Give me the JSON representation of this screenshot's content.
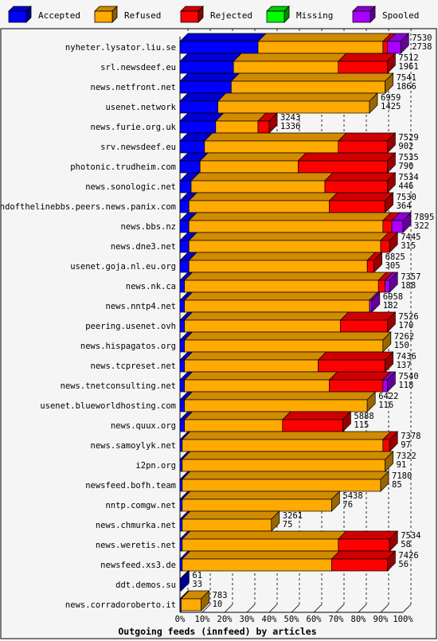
{
  "chart_data": {
    "type": "bar",
    "orientation": "horizontal",
    "stacked": true,
    "style": "3d",
    "title": "Outgoing feeds (innfeed) by articles",
    "x_ticks": [
      "0%",
      "10%",
      "20%",
      "30%",
      "40%",
      "50%",
      "60%",
      "70%",
      "80%",
      "90%",
      "100%"
    ],
    "xlim": [
      0,
      100
    ],
    "grid": true,
    "legend_position": "top",
    "legend": [
      {
        "key": "accepted",
        "label": "Accepted",
        "color": "#0000ff"
      },
      {
        "key": "refused",
        "label": "Refused",
        "color": "#ffaa00"
      },
      {
        "key": "rejected",
        "label": "Rejected",
        "color": "#ff0000"
      },
      {
        "key": "missing",
        "label": "Missing",
        "color": "#00ff00"
      },
      {
        "key": "spooled",
        "label": "Spooled",
        "color": "#aa00ff"
      }
    ],
    "rows": [
      {
        "name": "nyheter.lysator.liu.se",
        "total": "7530",
        "accepted_count": "2738",
        "pct": [
          35,
          56,
          2,
          0,
          6
        ]
      },
      {
        "name": "srl.newsdeef.eu",
        "total": "7512",
        "accepted_count": "1961",
        "pct": [
          24,
          47,
          22,
          0,
          0
        ]
      },
      {
        "name": "news.netfront.net",
        "total": "7541",
        "accepted_count": "1866",
        "pct": [
          23,
          69,
          0,
          0,
          0
        ]
      },
      {
        "name": "usenet.network",
        "total": "6959",
        "accepted_count": "1425",
        "pct": [
          17,
          68,
          0,
          0,
          0
        ]
      },
      {
        "name": "news.furie.org.uk",
        "total": "3243",
        "accepted_count": "1336",
        "pct": [
          16,
          19,
          5,
          0,
          0
        ]
      },
      {
        "name": "srv.newsdeef.eu",
        "total": "7529",
        "accepted_count": "902",
        "pct": [
          11,
          60,
          22,
          0,
          0
        ]
      },
      {
        "name": "photonic.trudheim.com",
        "total": "7535",
        "accepted_count": "790",
        "pct": [
          9,
          44,
          40,
          0,
          0
        ]
      },
      {
        "name": "news.sonologic.net",
        "total": "7534",
        "accepted_count": "446",
        "pct": [
          5,
          60,
          28,
          0,
          0
        ]
      },
      {
        "name": "endofthelinebbs.peers.news.panix.com",
        "total": "7530",
        "accepted_count": "364",
        "pct": [
          4,
          63,
          25,
          0,
          0
        ]
      },
      {
        "name": "news.bbs.nz",
        "total": "7895",
        "accepted_count": "322",
        "pct": [
          4,
          87,
          4,
          0,
          5
        ]
      },
      {
        "name": "news.dne3.net",
        "total": "7445",
        "accepted_count": "315",
        "pct": [
          4,
          86,
          4,
          0,
          0
        ]
      },
      {
        "name": "usenet.goja.nl.eu.org",
        "total": "6825",
        "accepted_count": "305",
        "pct": [
          4,
          80,
          3,
          0,
          0
        ]
      },
      {
        "name": "news.nk.ca",
        "total": "7357",
        "accepted_count": "188",
        "pct": [
          2,
          87,
          3,
          0,
          2
        ]
      },
      {
        "name": "news.nntp4.net",
        "total": "6958",
        "accepted_count": "182",
        "pct": [
          2,
          83,
          0,
          0,
          1
        ]
      },
      {
        "name": "peering.usenet.ovh",
        "total": "7526",
        "accepted_count": "170",
        "pct": [
          2,
          70,
          21,
          0,
          0
        ]
      },
      {
        "name": "news.hispagatos.org",
        "total": "7262",
        "accepted_count": "150",
        "pct": [
          2,
          89,
          0,
          0,
          0
        ]
      },
      {
        "name": "news.tcpreset.net",
        "total": "7436",
        "accepted_count": "137",
        "pct": [
          2,
          60,
          30,
          0,
          0
        ]
      },
      {
        "name": "news.tnetconsulting.net",
        "total": "7540",
        "accepted_count": "118",
        "pct": [
          2,
          65,
          24,
          0,
          2
        ]
      },
      {
        "name": "usenet.blueworldhosting.com",
        "total": "6422",
        "accepted_count": "116",
        "pct": [
          2,
          82,
          0,
          0,
          0
        ]
      },
      {
        "name": "news.quux.org",
        "total": "5888",
        "accepted_count": "115",
        "pct": [
          2,
          44,
          27,
          0,
          0
        ]
      },
      {
        "name": "news.samoylyk.net",
        "total": "7378",
        "accepted_count": "97",
        "pct": [
          1,
          90,
          3,
          0,
          0
        ]
      },
      {
        "name": "i2pn.org",
        "total": "7322",
        "accepted_count": "91",
        "pct": [
          1,
          91,
          0,
          0,
          0
        ]
      },
      {
        "name": "newsfeed.bofh.team",
        "total": "7180",
        "accepted_count": "85",
        "pct": [
          1,
          89,
          0,
          0,
          0
        ]
      },
      {
        "name": "nntp.comgw.net",
        "total": "5438",
        "accepted_count": "76",
        "pct": [
          1,
          67,
          0,
          0,
          0
        ]
      },
      {
        "name": "news.chmurka.net",
        "total": "3261",
        "accepted_count": "75",
        "pct": [
          1,
          40,
          0,
          0,
          0
        ]
      },
      {
        "name": "news.weretis.net",
        "total": "7534",
        "accepted_count": "58",
        "pct": [
          1,
          70,
          23,
          0,
          0
        ]
      },
      {
        "name": "newsfeed.xs3.de",
        "total": "7426",
        "accepted_count": "56",
        "pct": [
          1,
          67,
          25,
          0,
          0
        ]
      },
      {
        "name": "ddt.demos.su",
        "total": "61",
        "accepted_count": "33",
        "pct": [
          0.5,
          0,
          0,
          0,
          0
        ]
      },
      {
        "name": "news.corradoroberto.it",
        "total": "783",
        "accepted_count": "10",
        "pct": [
          0.5,
          9,
          0,
          0,
          0
        ]
      }
    ]
  }
}
